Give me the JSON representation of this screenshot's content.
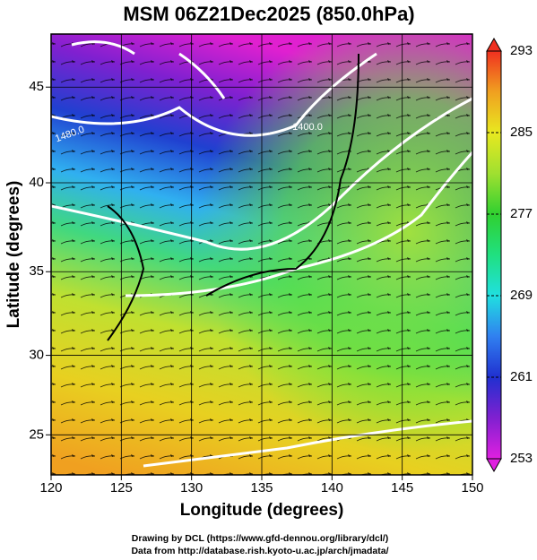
{
  "chart_data": {
    "type": "map",
    "title": "MSM 06Z21Dec2025 (850.0hPa)",
    "xlabel": "Longitude (degrees)",
    "ylabel": "Latitude  (degrees)",
    "xlim": [
      120,
      150
    ],
    "xticks": [
      120,
      125,
      130,
      135,
      140,
      145,
      150
    ],
    "ylim": [
      22.4,
      47.6
    ],
    "yticks": [
      25,
      30,
      35,
      40,
      45
    ],
    "y_scale": "mercator",
    "grid": true,
    "colorbar": {
      "lim": [
        253,
        293
      ],
      "ticks": [
        253,
        261,
        269,
        277,
        285,
        293
      ],
      "colormap": [
        "#e020e0",
        "#8020d0",
        "#2030d0",
        "#3080f0",
        "#20e0e0",
        "#20e080",
        "#30d030",
        "#a0e030",
        "#e8e820",
        "#f0a020",
        "#f03020"
      ]
    },
    "contour_labels": [
      "1400.0",
      "1480.0"
    ],
    "footer": [
      "Drawing by DCL (https://www.gfd-dennou.org/library/dcl/)",
      "Data from http://database.rish.kyoto-u.ac.jp/arch/jmadata/"
    ]
  }
}
